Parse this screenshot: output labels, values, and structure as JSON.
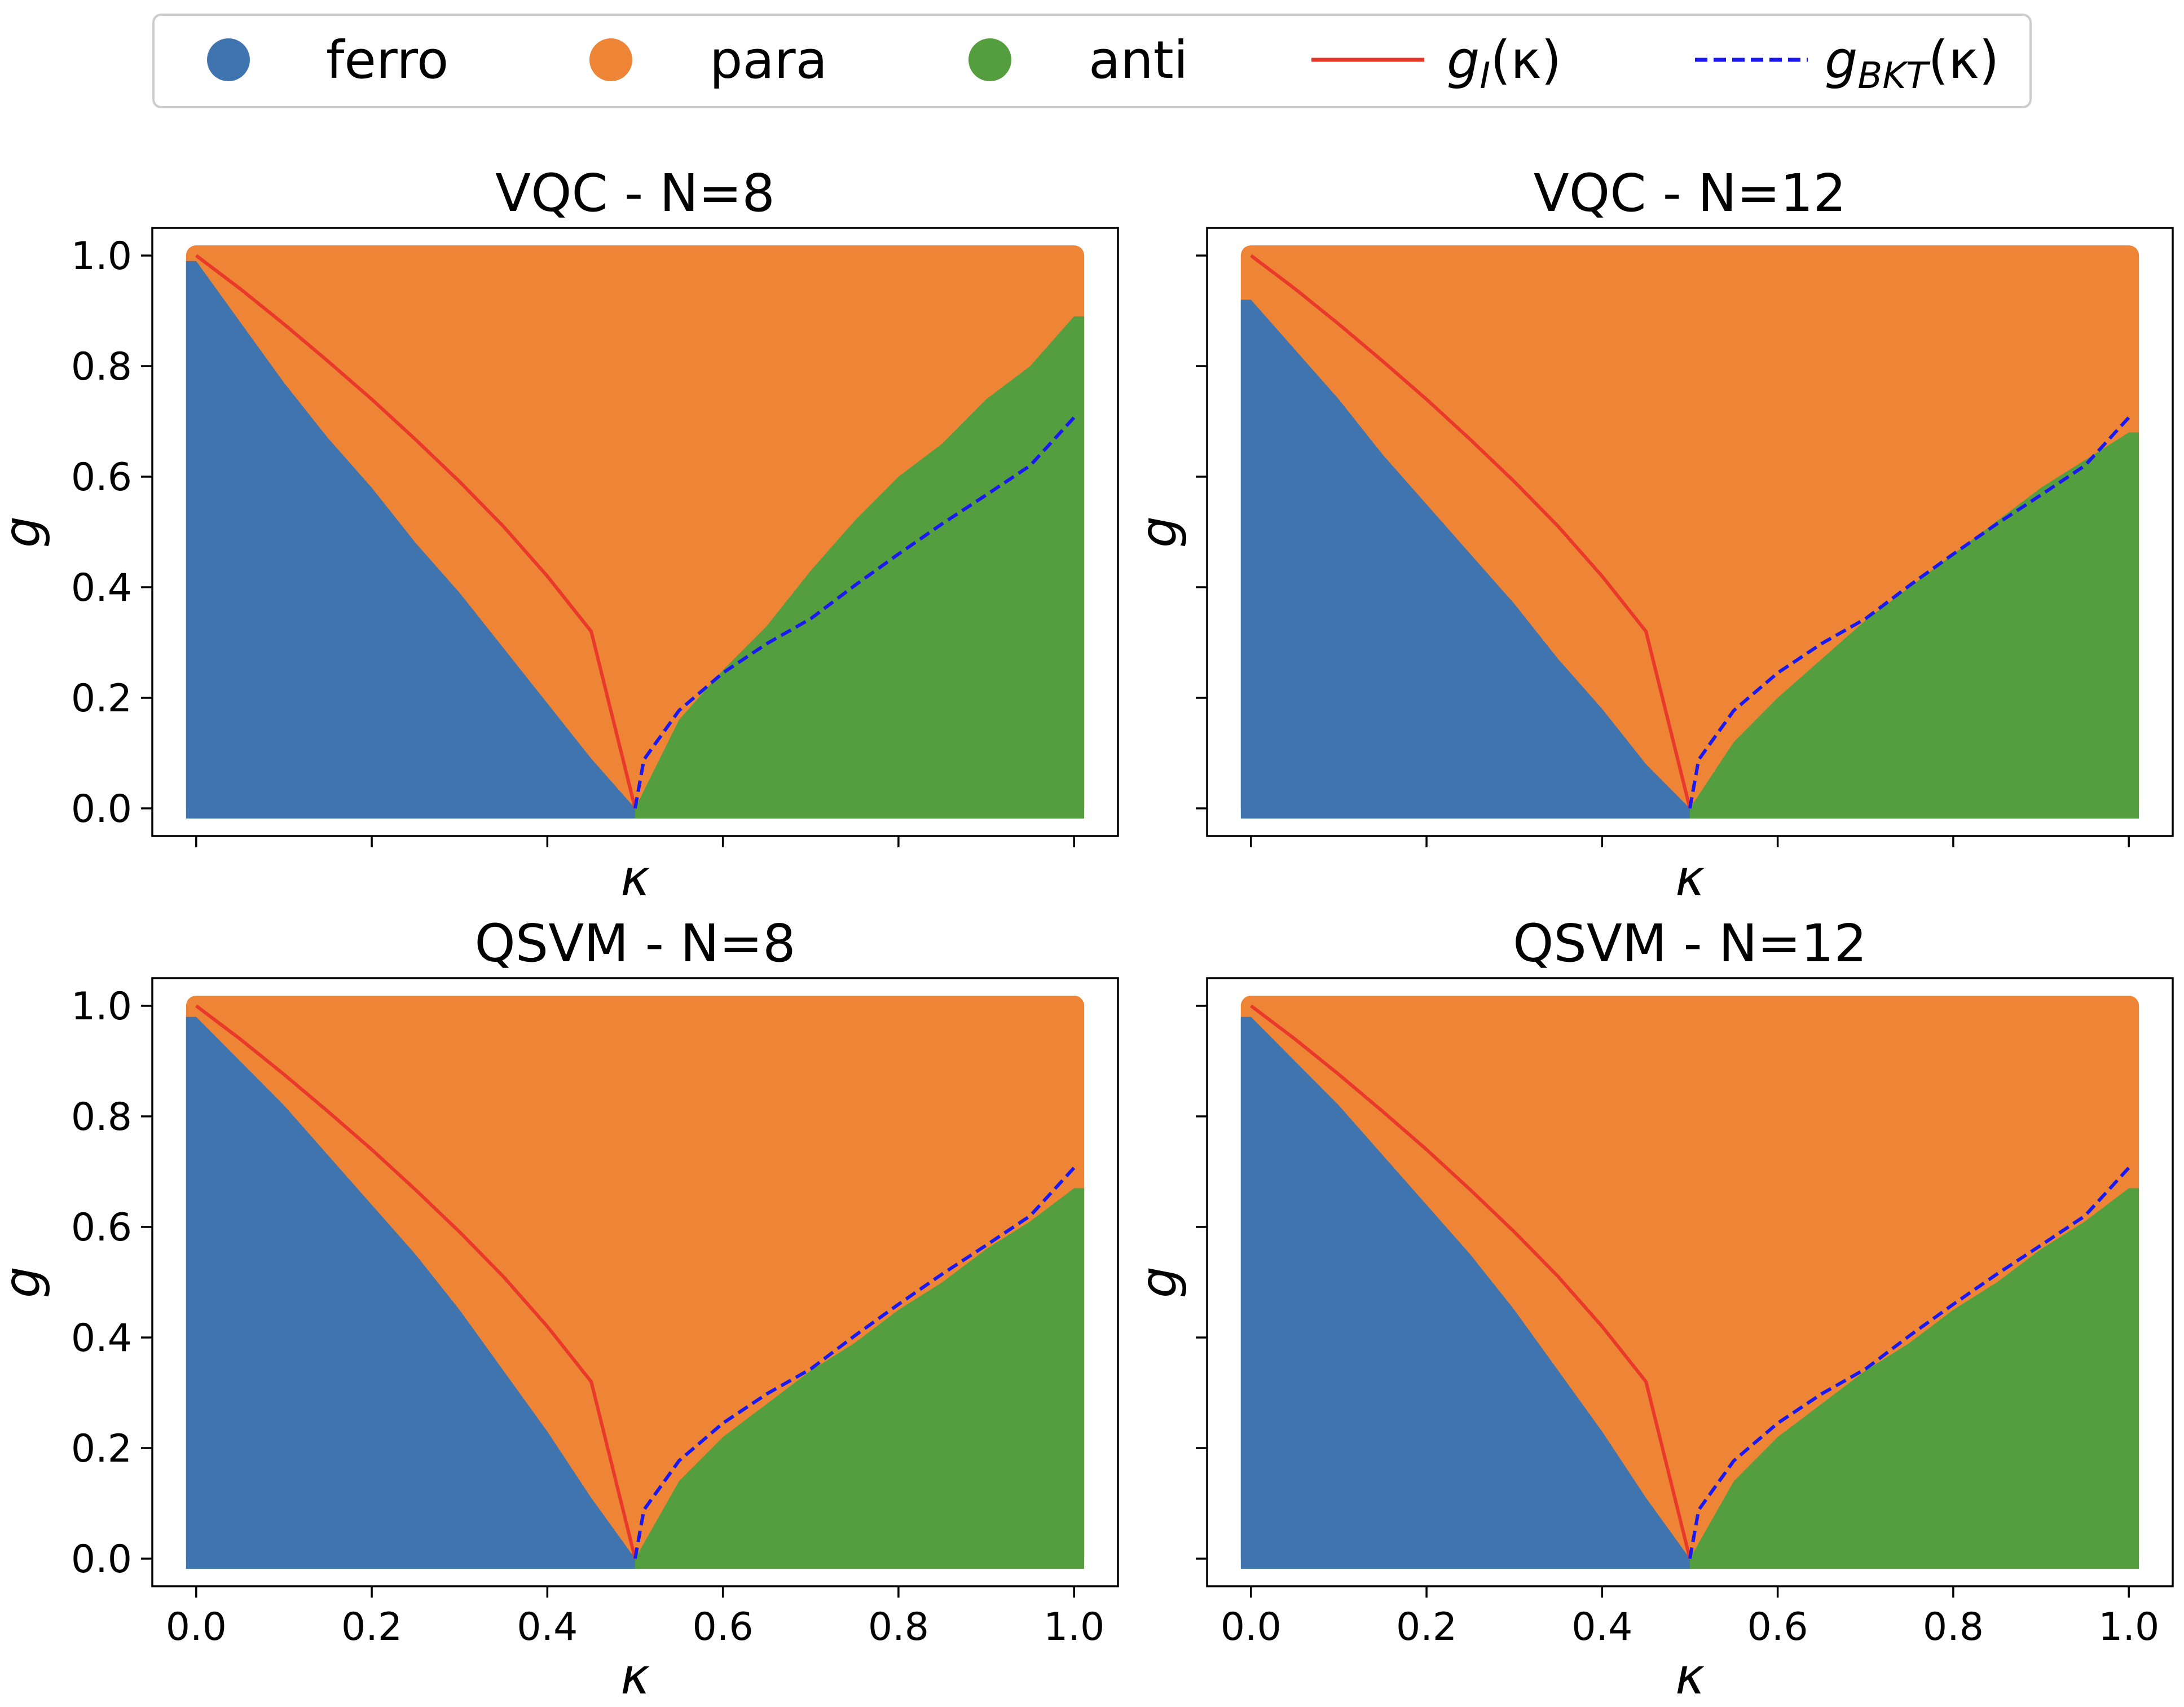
{
  "colors": {
    "ferro": "#4074ae",
    "para": "#ee8436",
    "anti": "#559e40",
    "g_I": "#e8392a",
    "g_BKT": "#1a1aee"
  },
  "legend": {
    "placement": "top-center",
    "entries": [
      {
        "key": "ferro",
        "label": "ferro",
        "marker": "circle"
      },
      {
        "key": "para",
        "label": "para",
        "marker": "circle"
      },
      {
        "key": "anti",
        "label": "anti",
        "marker": "circle"
      },
      {
        "key": "g_I",
        "label_base": "g",
        "label_sub": "I",
        "label_tail": "(κ)",
        "marker": "solid-line"
      },
      {
        "key": "g_BKT",
        "label_base": "g",
        "label_sub": "BKT",
        "label_tail": "(κ)",
        "marker": "dashed-line"
      }
    ]
  },
  "chart_data": [
    {
      "type": "scatter",
      "title": "VQC - N=8",
      "xlabel": "κ",
      "ylabel": "g",
      "xlim": [
        -0.05,
        1.05
      ],
      "ylim": [
        -0.05,
        1.05
      ],
      "xticks": [
        "0.0",
        "0.2",
        "0.4",
        "0.6",
        "0.8",
        "1.0"
      ],
      "yticks": [
        "0.0",
        "0.2",
        "0.4",
        "0.6",
        "0.8",
        "1.0"
      ],
      "show_xticklabels": false,
      "show_yticklabels": true,
      "grid": false,
      "regions": {
        "ferro_para_boundary": [
          [
            0.0,
            0.99
          ],
          [
            0.05,
            0.88
          ],
          [
            0.1,
            0.77
          ],
          [
            0.15,
            0.67
          ],
          [
            0.2,
            0.58
          ],
          [
            0.25,
            0.48
          ],
          [
            0.3,
            0.39
          ],
          [
            0.35,
            0.29
          ],
          [
            0.4,
            0.19
          ],
          [
            0.45,
            0.09
          ],
          [
            0.5,
            0.0
          ]
        ],
        "anti_para_boundary": [
          [
            0.5,
            0.0
          ],
          [
            0.55,
            0.16
          ],
          [
            0.6,
            0.25
          ],
          [
            0.65,
            0.33
          ],
          [
            0.7,
            0.43
          ],
          [
            0.75,
            0.52
          ],
          [
            0.8,
            0.6
          ],
          [
            0.85,
            0.66
          ],
          [
            0.9,
            0.74
          ],
          [
            0.95,
            0.8
          ],
          [
            1.0,
            0.89
          ]
        ]
      },
      "series": [
        {
          "name": "g_I(κ)",
          "style": "solid",
          "x": [
            0.0,
            0.05,
            0.1,
            0.15,
            0.2,
            0.25,
            0.3,
            0.35,
            0.4,
            0.45,
            0.5
          ],
          "y": [
            1.0,
            0.94,
            0.876,
            0.809,
            0.74,
            0.667,
            0.591,
            0.51,
            0.42,
            0.32,
            0.0
          ]
        },
        {
          "name": "g_BKT(κ)",
          "style": "dashed",
          "x": [
            0.5,
            0.51,
            0.55,
            0.6,
            0.65,
            0.7,
            0.75,
            0.8,
            0.85,
            0.9,
            0.95,
            1.0
          ],
          "y": [
            0.0,
            0.088,
            0.177,
            0.245,
            0.298,
            0.343,
            0.403,
            0.46,
            0.515,
            0.567,
            0.62,
            0.707
          ]
        }
      ]
    },
    {
      "type": "scatter",
      "title": "VQC - N=12",
      "xlabel": "κ",
      "ylabel": "g",
      "xlim": [
        -0.05,
        1.05
      ],
      "ylim": [
        -0.05,
        1.05
      ],
      "xticks": [
        "0.0",
        "0.2",
        "0.4",
        "0.6",
        "0.8",
        "1.0"
      ],
      "yticks": [
        "0.0",
        "0.2",
        "0.4",
        "0.6",
        "0.8",
        "1.0"
      ],
      "show_xticklabels": false,
      "show_yticklabels": false,
      "grid": false,
      "regions": {
        "ferro_para_boundary": [
          [
            0.0,
            0.92
          ],
          [
            0.05,
            0.83
          ],
          [
            0.1,
            0.74
          ],
          [
            0.15,
            0.64
          ],
          [
            0.2,
            0.55
          ],
          [
            0.25,
            0.46
          ],
          [
            0.3,
            0.37
          ],
          [
            0.35,
            0.27
          ],
          [
            0.4,
            0.18
          ],
          [
            0.45,
            0.08
          ],
          [
            0.5,
            0.0
          ]
        ],
        "anti_para_boundary": [
          [
            0.5,
            0.0
          ],
          [
            0.55,
            0.12
          ],
          [
            0.6,
            0.2
          ],
          [
            0.65,
            0.27
          ],
          [
            0.7,
            0.34
          ],
          [
            0.75,
            0.4
          ],
          [
            0.8,
            0.46
          ],
          [
            0.85,
            0.52
          ],
          [
            0.9,
            0.58
          ],
          [
            0.95,
            0.63
          ],
          [
            1.0,
            0.68
          ]
        ]
      },
      "series": [
        {
          "name": "g_I(κ)",
          "style": "solid",
          "x": [
            0.0,
            0.05,
            0.1,
            0.15,
            0.2,
            0.25,
            0.3,
            0.35,
            0.4,
            0.45,
            0.5
          ],
          "y": [
            1.0,
            0.94,
            0.876,
            0.809,
            0.74,
            0.667,
            0.591,
            0.51,
            0.42,
            0.32,
            0.0
          ]
        },
        {
          "name": "g_BKT(κ)",
          "style": "dashed",
          "x": [
            0.5,
            0.51,
            0.55,
            0.6,
            0.65,
            0.7,
            0.75,
            0.8,
            0.85,
            0.9,
            0.95,
            1.0
          ],
          "y": [
            0.0,
            0.088,
            0.177,
            0.245,
            0.298,
            0.343,
            0.403,
            0.46,
            0.515,
            0.567,
            0.62,
            0.707
          ]
        }
      ]
    },
    {
      "type": "scatter",
      "title": "QSVM - N=8",
      "xlabel": "κ",
      "ylabel": "g",
      "xlim": [
        -0.05,
        1.05
      ],
      "ylim": [
        -0.05,
        1.05
      ],
      "xticks": [
        "0.0",
        "0.2",
        "0.4",
        "0.6",
        "0.8",
        "1.0"
      ],
      "yticks": [
        "0.0",
        "0.2",
        "0.4",
        "0.6",
        "0.8",
        "1.0"
      ],
      "show_xticklabels": true,
      "show_yticklabels": true,
      "grid": false,
      "regions": {
        "ferro_para_boundary": [
          [
            0.0,
            0.98
          ],
          [
            0.05,
            0.9
          ],
          [
            0.1,
            0.82
          ],
          [
            0.15,
            0.73
          ],
          [
            0.2,
            0.64
          ],
          [
            0.25,
            0.55
          ],
          [
            0.3,
            0.45
          ],
          [
            0.35,
            0.34
          ],
          [
            0.4,
            0.23
          ],
          [
            0.45,
            0.11
          ],
          [
            0.5,
            0.0
          ]
        ],
        "anti_para_boundary": [
          [
            0.5,
            0.0
          ],
          [
            0.55,
            0.14
          ],
          [
            0.6,
            0.22
          ],
          [
            0.65,
            0.28
          ],
          [
            0.7,
            0.34
          ],
          [
            0.75,
            0.39
          ],
          [
            0.8,
            0.45
          ],
          [
            0.85,
            0.5
          ],
          [
            0.9,
            0.56
          ],
          [
            0.95,
            0.61
          ],
          [
            1.0,
            0.67
          ]
        ]
      },
      "series": [
        {
          "name": "g_I(κ)",
          "style": "solid",
          "x": [
            0.0,
            0.05,
            0.1,
            0.15,
            0.2,
            0.25,
            0.3,
            0.35,
            0.4,
            0.45,
            0.5
          ],
          "y": [
            1.0,
            0.94,
            0.876,
            0.809,
            0.74,
            0.667,
            0.591,
            0.51,
            0.42,
            0.32,
            0.0
          ]
        },
        {
          "name": "g_BKT(κ)",
          "style": "dashed",
          "x": [
            0.5,
            0.51,
            0.55,
            0.6,
            0.65,
            0.7,
            0.75,
            0.8,
            0.85,
            0.9,
            0.95,
            1.0
          ],
          "y": [
            0.0,
            0.088,
            0.177,
            0.245,
            0.298,
            0.343,
            0.403,
            0.46,
            0.515,
            0.567,
            0.62,
            0.707
          ]
        }
      ]
    },
    {
      "type": "scatter",
      "title": "QSVM - N=12",
      "xlabel": "κ",
      "ylabel": "g",
      "xlim": [
        -0.05,
        1.05
      ],
      "ylim": [
        -0.05,
        1.05
      ],
      "xticks": [
        "0.0",
        "0.2",
        "0.4",
        "0.6",
        "0.8",
        "1.0"
      ],
      "yticks": [
        "0.0",
        "0.2",
        "0.4",
        "0.6",
        "0.8",
        "1.0"
      ],
      "show_xticklabels": true,
      "show_yticklabels": false,
      "grid": false,
      "regions": {
        "ferro_para_boundary": [
          [
            0.0,
            0.98
          ],
          [
            0.05,
            0.9
          ],
          [
            0.1,
            0.82
          ],
          [
            0.15,
            0.73
          ],
          [
            0.2,
            0.64
          ],
          [
            0.25,
            0.55
          ],
          [
            0.3,
            0.45
          ],
          [
            0.35,
            0.34
          ],
          [
            0.4,
            0.23
          ],
          [
            0.45,
            0.11
          ],
          [
            0.5,
            0.0
          ]
        ],
        "anti_para_boundary": [
          [
            0.5,
            0.0
          ],
          [
            0.55,
            0.14
          ],
          [
            0.6,
            0.22
          ],
          [
            0.65,
            0.28
          ],
          [
            0.7,
            0.34
          ],
          [
            0.75,
            0.39
          ],
          [
            0.8,
            0.45
          ],
          [
            0.85,
            0.5
          ],
          [
            0.9,
            0.56
          ],
          [
            0.95,
            0.61
          ],
          [
            1.0,
            0.67
          ]
        ]
      },
      "series": [
        {
          "name": "g_I(κ)",
          "style": "solid",
          "x": [
            0.0,
            0.05,
            0.1,
            0.15,
            0.2,
            0.25,
            0.3,
            0.35,
            0.4,
            0.45,
            0.5
          ],
          "y": [
            1.0,
            0.94,
            0.876,
            0.809,
            0.74,
            0.667,
            0.591,
            0.51,
            0.42,
            0.32,
            0.0
          ]
        },
        {
          "name": "g_BKT(κ)",
          "style": "dashed",
          "x": [
            0.5,
            0.51,
            0.55,
            0.6,
            0.65,
            0.7,
            0.75,
            0.8,
            0.85,
            0.9,
            0.95,
            1.0
          ],
          "y": [
            0.0,
            0.088,
            0.177,
            0.245,
            0.298,
            0.343,
            0.403,
            0.46,
            0.515,
            0.567,
            0.62,
            0.707
          ]
        }
      ]
    }
  ]
}
